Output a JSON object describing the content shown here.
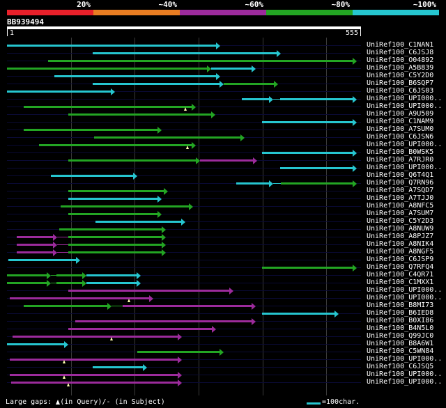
{
  "header": {
    "percent_labels": [
      "20%",
      "~40%",
      "~60%",
      "~80%",
      "~100%"
    ],
    "colors": [
      "#e8202a",
      "#e87d22",
      "#9c2b9c",
      "#23a523",
      "#26c6d0"
    ]
  },
  "query": {
    "id": "BB939494",
    "start_label": "1",
    "end_label": "555",
    "length": 555
  },
  "legend": {
    "gaps_text": "Large gaps: ",
    "query_gap_text": "(in Query)/",
    "subject_gap_text": "-  (in Subject)",
    "scale_text": "=100char."
  },
  "hits": [
    {
      "name": "UniRef100_C1NAN1",
      "segments": [
        [
          1,
          335,
          "c"
        ]
      ],
      "gaps": []
    },
    {
      "name": "UniRef100_C6JSJ8",
      "segments": [
        [
          135,
          430,
          "c"
        ]
      ],
      "gaps": []
    },
    {
      "name": "UniRef100_O04892",
      "segments": [
        [
          65,
          548,
          "g"
        ]
      ],
      "gaps": []
    },
    {
      "name": "UniRef100_A5B839",
      "segments": [
        [
          1,
          320,
          "g"
        ],
        [
          320,
          390,
          "c"
        ]
      ],
      "gaps": []
    },
    {
      "name": "UniRef100_C5Y2D0",
      "segments": [
        [
          75,
          335,
          "c"
        ]
      ],
      "gaps": []
    },
    {
      "name": "UniRef100_B6SQP7",
      "segments": [
        [
          135,
          340,
          "c"
        ],
        [
          340,
          425,
          "g"
        ]
      ],
      "gaps": []
    },
    {
      "name": "UniRef100_C6JS03",
      "segments": [
        [
          1,
          170,
          "c"
        ]
      ],
      "gaps": []
    },
    {
      "name": "UniRef100_UPI000..",
      "segments": [
        [
          368,
          418,
          "c"
        ],
        [
          428,
          548,
          "c"
        ]
      ],
      "gaps": []
    },
    {
      "name": "UniRef100_UPI000..",
      "segments": [
        [
          27,
          297,
          "g"
        ]
      ],
      "gaps": [
        280
      ]
    },
    {
      "name": "UniRef100_A9U509",
      "segments": [
        [
          97,
          327,
          "g"
        ]
      ],
      "gaps": []
    },
    {
      "name": "UniRef100_C1NAM9",
      "segments": [
        [
          400,
          548,
          "c"
        ]
      ],
      "gaps": []
    },
    {
      "name": "UniRef100_A7SUM0",
      "segments": [
        [
          27,
          243,
          "g"
        ]
      ],
      "gaps": []
    },
    {
      "name": "UniRef100_C6JSN6",
      "segments": [
        [
          137,
          373,
          "g"
        ]
      ],
      "gaps": []
    },
    {
      "name": "UniRef100_UPI000..",
      "segments": [
        [
          51,
          297,
          "g"
        ]
      ],
      "gaps": [
        283
      ]
    },
    {
      "name": "UniRef100_B0WSK5",
      "segments": [
        [
          400,
          548,
          "c"
        ]
      ],
      "gaps": []
    },
    {
      "name": "UniRef100_A7RJR0",
      "segments": [
        [
          97,
          303,
          "g"
        ],
        [
          303,
          393,
          "m"
        ]
      ],
      "gaps": []
    },
    {
      "name": "UniRef100_UPI000..",
      "segments": [
        [
          428,
          548,
          "c"
        ]
      ],
      "gaps": []
    },
    {
      "name": "UniRef100_Q6T4Q1",
      "segments": [
        [
          70,
          205,
          "c"
        ]
      ],
      "gaps": []
    },
    {
      "name": "UniRef100_Q7RN96",
      "segments": [
        [
          360,
          418,
          "c"
        ],
        [
          430,
          548,
          "g"
        ]
      ],
      "gaps": []
    },
    {
      "name": "UniRef100_A7SQD7",
      "segments": [
        [
          97,
          253,
          "g"
        ]
      ],
      "gaps": []
    },
    {
      "name": "UniRef100_A7TJJ0",
      "segments": [
        [
          97,
          243,
          "c"
        ]
      ],
      "gaps": []
    },
    {
      "name": "UniRef100_A8NFC5",
      "segments": [
        [
          85,
          292,
          "g"
        ]
      ],
      "gaps": []
    },
    {
      "name": "UniRef100_A7SUM7",
      "segments": [
        [
          97,
          243,
          "g"
        ]
      ],
      "gaps": []
    },
    {
      "name": "UniRef100_C5Y2D3",
      "segments": [
        [
          140,
          280,
          "c"
        ]
      ],
      "gaps": []
    },
    {
      "name": "UniRef100_A8NUW9",
      "segments": [
        [
          83,
          250,
          "g"
        ]
      ],
      "gaps": []
    },
    {
      "name": "UniRef100_A8PJZ7",
      "segments": [
        [
          16,
          80,
          "m"
        ],
        [
          97,
          250,
          "g"
        ]
      ],
      "gaps": []
    },
    {
      "name": "UniRef100_A8NIK4",
      "segments": [
        [
          16,
          80,
          "m"
        ],
        [
          97,
          250,
          "g"
        ]
      ],
      "gaps": []
    },
    {
      "name": "UniRef100_A8NGF5",
      "segments": [
        [
          16,
          80,
          "m"
        ],
        [
          97,
          250,
          "g"
        ]
      ],
      "gaps": []
    },
    {
      "name": "UniRef100_C6JSP9",
      "segments": [
        [
          3,
          115,
          "c"
        ]
      ],
      "gaps": []
    },
    {
      "name": "UniRef100_Q7RFQ4",
      "segments": [
        [
          400,
          548,
          "g"
        ]
      ],
      "gaps": []
    },
    {
      "name": "UniRef100_C4QR71",
      "segments": [
        [
          1,
          70,
          "g"
        ],
        [
          78,
          125,
          "g"
        ],
        [
          125,
          210,
          "c"
        ]
      ],
      "gaps": []
    },
    {
      "name": "UniRef100_C1MXX1",
      "segments": [
        [
          1,
          70,
          "g"
        ],
        [
          78,
          125,
          "g"
        ],
        [
          125,
          210,
          "c"
        ]
      ],
      "gaps": []
    },
    {
      "name": "UniRef100_UPI000..",
      "segments": [
        [
          97,
          355,
          "m"
        ]
      ],
      "gaps": []
    },
    {
      "name": "UniRef100_UPI000..",
      "segments": [
        [
          5,
          230,
          "m"
        ]
      ],
      "gaps": [
        192
      ]
    },
    {
      "name": "UniRef100_B8MI73",
      "segments": [
        [
          27,
          165,
          "g"
        ],
        [
          182,
          390,
          "m"
        ]
      ],
      "gaps": []
    },
    {
      "name": "UniRef100_B6IED8",
      "segments": [
        [
          400,
          520,
          "c"
        ]
      ],
      "gaps": []
    },
    {
      "name": "UniRef100_B0XI86",
      "segments": [
        [
          108,
          390,
          "m"
        ]
      ],
      "gaps": []
    },
    {
      "name": "UniRef100_B4N5L0",
      "segments": [
        [
          97,
          328,
          "m"
        ]
      ],
      "gaps": []
    },
    {
      "name": "UniRef100_Q99JC0",
      "segments": [
        [
          10,
          275,
          "m"
        ]
      ],
      "gaps": [
        165
      ]
    },
    {
      "name": "UniRef100_B8A6W1",
      "segments": [
        [
          1,
          97,
          "c"
        ]
      ],
      "gaps": []
    },
    {
      "name": "UniRef100_C5WN84",
      "segments": [
        [
          205,
          340,
          "g"
        ]
      ],
      "gaps": []
    },
    {
      "name": "UniRef100_UPI000..",
      "segments": [
        [
          5,
          275,
          "m"
        ]
      ],
      "gaps": [
        90
      ]
    },
    {
      "name": "UniRef100_C6JSQ5",
      "segments": [
        [
          135,
          220,
          "c"
        ]
      ],
      "gaps": []
    },
    {
      "name": "UniRef100_UPI000..",
      "segments": [
        [
          5,
          275,
          "m"
        ]
      ],
      "gaps": [
        90
      ]
    },
    {
      "name": "UniRef100_UPI000..",
      "segments": [
        [
          8,
          275,
          "m"
        ]
      ],
      "gaps": [
        97
      ]
    }
  ]
}
